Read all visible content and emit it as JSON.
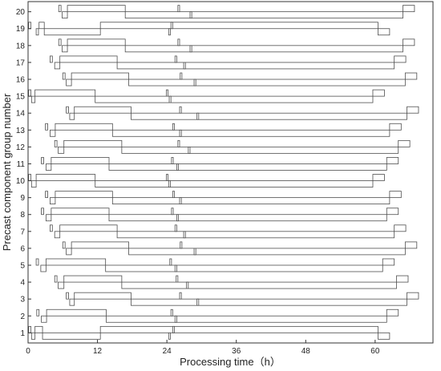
{
  "chart_data": {
    "type": "gantt",
    "xlabel": "Processing time（h）",
    "ylabel": "Precast component group number",
    "xlim": [
      0,
      70
    ],
    "x_ticks": [
      0,
      12,
      24,
      36,
      48,
      60
    ],
    "ylim": [
      0.4,
      20.6
    ],
    "y_ticks": [
      1,
      2,
      3,
      4,
      5,
      6,
      7,
      8,
      9,
      10,
      11,
      12,
      13,
      14,
      15,
      16,
      17,
      18,
      19,
      20
    ],
    "grid": false,
    "colors": {
      "bar_fill": "#ffffff",
      "bar_stroke": "#4d4d4d",
      "axis": "#333333"
    },
    "groups": [
      {
        "group": 1,
        "bars": [
          [
            0.1,
            0.5
          ],
          [
            0.6,
            1.2
          ],
          [
            1.2,
            2.5
          ],
          [
            2.5,
            12.5
          ],
          [
            12.5,
            60.5
          ],
          [
            24.3,
            24.6
          ],
          [
            25.0,
            25.3
          ],
          [
            60.5,
            62.5
          ]
        ]
      },
      {
        "group": 2,
        "bars": [
          [
            1.5,
            1.9
          ],
          [
            2.3,
            3.2
          ],
          [
            3.2,
            13.5
          ],
          [
            13.5,
            62.0
          ],
          [
            24.7,
            25.0
          ],
          [
            25.4,
            25.7
          ],
          [
            62.0,
            64.0
          ]
        ]
      },
      {
        "group": 3,
        "bars": [
          [
            6.6,
            7.0
          ],
          [
            7.2,
            8.0
          ],
          [
            8.0,
            17.8
          ],
          [
            17.8,
            65.5
          ],
          [
            26.2,
            26.5
          ],
          [
            29.2,
            29.5
          ],
          [
            65.5,
            67.5
          ]
        ]
      },
      {
        "group": 4,
        "bars": [
          [
            4.6,
            5.0
          ],
          [
            5.2,
            6.2
          ],
          [
            6.2,
            16.2
          ],
          [
            16.2,
            63.7
          ],
          [
            25.6,
            25.9
          ],
          [
            27.4,
            27.7
          ],
          [
            63.7,
            65.7
          ]
        ]
      },
      {
        "group": 5,
        "bars": [
          [
            1.4,
            1.8
          ],
          [
            2.2,
            3.1
          ],
          [
            3.1,
            13.4
          ],
          [
            13.4,
            61.3
          ],
          [
            24.5,
            24.8
          ],
          [
            25.4,
            25.7
          ],
          [
            61.3,
            63.3
          ]
        ]
      },
      {
        "group": 6,
        "bars": [
          [
            6.0,
            6.4
          ],
          [
            6.6,
            7.5
          ],
          [
            7.5,
            17.4
          ],
          [
            17.4,
            65.2
          ],
          [
            26.3,
            26.6
          ],
          [
            28.7,
            29.0
          ],
          [
            65.2,
            67.2
          ]
        ]
      },
      {
        "group": 7,
        "bars": [
          [
            3.8,
            4.2
          ],
          [
            4.6,
            5.5
          ],
          [
            5.5,
            15.4
          ],
          [
            15.4,
            63.3
          ],
          [
            25.4,
            25.7
          ],
          [
            26.9,
            27.2
          ],
          [
            63.3,
            65.3
          ]
        ]
      },
      {
        "group": 8,
        "bars": [
          [
            2.3,
            2.7
          ],
          [
            3.1,
            4.0
          ],
          [
            4.0,
            14.0
          ],
          [
            14.0,
            62.0
          ],
          [
            24.8,
            25.1
          ],
          [
            25.7,
            26.0
          ],
          [
            62.0,
            64.0
          ]
        ]
      },
      {
        "group": 9,
        "bars": [
          [
            3.0,
            3.4
          ],
          [
            3.8,
            4.7
          ],
          [
            4.7,
            14.6
          ],
          [
            14.6,
            62.5
          ],
          [
            25.0,
            25.3
          ],
          [
            26.2,
            26.5
          ],
          [
            62.5,
            64.5
          ]
        ]
      },
      {
        "group": 10,
        "bars": [
          [
            0.1,
            0.5
          ],
          [
            0.6,
            1.4
          ],
          [
            1.4,
            11.6
          ],
          [
            11.6,
            59.6
          ],
          [
            23.9,
            24.2
          ],
          [
            24.3,
            24.6
          ],
          [
            59.6,
            61.6
          ]
        ]
      },
      {
        "group": 11,
        "bars": [
          [
            2.3,
            2.7
          ],
          [
            3.1,
            4.0
          ],
          [
            4.0,
            14.0
          ],
          [
            14.0,
            62.0
          ],
          [
            24.8,
            25.1
          ],
          [
            25.7,
            26.0
          ],
          [
            62.0,
            64.0
          ]
        ]
      },
      {
        "group": 12,
        "bars": [
          [
            4.6,
            5.0
          ],
          [
            5.2,
            6.2
          ],
          [
            6.2,
            16.2
          ],
          [
            16.2,
            64.0
          ],
          [
            25.9,
            26.2
          ],
          [
            27.7,
            28.0
          ],
          [
            64.0,
            66.0
          ]
        ]
      },
      {
        "group": 13,
        "bars": [
          [
            3.0,
            3.4
          ],
          [
            3.8,
            4.7
          ],
          [
            4.7,
            14.6
          ],
          [
            14.6,
            62.5
          ],
          [
            25.0,
            25.3
          ],
          [
            26.2,
            26.5
          ],
          [
            62.5,
            64.5
          ]
        ]
      },
      {
        "group": 14,
        "bars": [
          [
            6.6,
            7.0
          ],
          [
            7.2,
            8.0
          ],
          [
            8.0,
            17.8
          ],
          [
            17.8,
            65.5
          ],
          [
            26.2,
            26.5
          ],
          [
            29.2,
            29.5
          ],
          [
            65.5,
            67.5
          ]
        ]
      },
      {
        "group": 15,
        "bars": [
          [
            0.1,
            0.5
          ],
          [
            0.6,
            1.2
          ],
          [
            1.2,
            11.6
          ],
          [
            11.6,
            59.6
          ],
          [
            23.9,
            24.2
          ],
          [
            24.4,
            24.7
          ],
          [
            59.6,
            61.6
          ]
        ]
      },
      {
        "group": 16,
        "bars": [
          [
            6.0,
            6.4
          ],
          [
            6.6,
            7.5
          ],
          [
            7.5,
            17.4
          ],
          [
            17.4,
            65.2
          ],
          [
            26.3,
            26.6
          ],
          [
            28.7,
            29.0
          ],
          [
            65.2,
            67.2
          ]
        ]
      },
      {
        "group": 17,
        "bars": [
          [
            3.8,
            4.2
          ],
          [
            4.6,
            5.5
          ],
          [
            5.5,
            15.4
          ],
          [
            15.4,
            63.3
          ],
          [
            25.4,
            25.7
          ],
          [
            26.9,
            27.2
          ],
          [
            63.3,
            65.3
          ]
        ]
      },
      {
        "group": 18,
        "bars": [
          [
            5.3,
            5.7
          ],
          [
            5.9,
            6.8
          ],
          [
            6.8,
            16.8
          ],
          [
            16.8,
            64.8
          ],
          [
            25.9,
            26.2
          ],
          [
            28.0,
            28.3
          ],
          [
            64.8,
            66.8
          ]
        ]
      },
      {
        "group": 19,
        "bars": [
          [
            0.1,
            0.5
          ],
          [
            1.4,
            1.8
          ],
          [
            1.9,
            2.8
          ],
          [
            2.8,
            12.5
          ],
          [
            12.5,
            60.5
          ],
          [
            24.3,
            24.6
          ],
          [
            24.7,
            25.0
          ],
          [
            60.5,
            62.5
          ]
        ]
      },
      {
        "group": 20,
        "bars": [
          [
            5.3,
            5.7
          ],
          [
            5.9,
            6.8
          ],
          [
            6.8,
            16.8
          ],
          [
            16.8,
            64.8
          ],
          [
            25.9,
            26.2
          ],
          [
            28.0,
            28.3
          ],
          [
            64.8,
            66.8
          ]
        ]
      }
    ]
  }
}
